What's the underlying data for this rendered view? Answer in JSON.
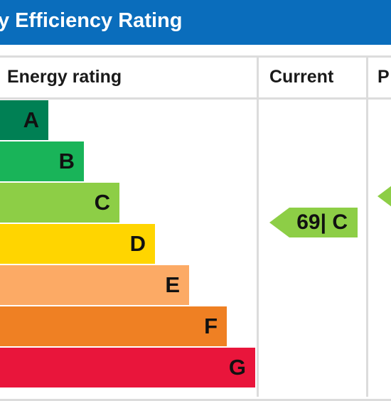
{
  "header": {
    "title": "y Efficiency Rating",
    "bg_color": "#0a6dbc"
  },
  "columns": {
    "rating": "Energy rating",
    "current": "Current",
    "potential": "P"
  },
  "bands": [
    {
      "letter": "A",
      "color": "#008054"
    },
    {
      "letter": "B",
      "color": "#19b459"
    },
    {
      "letter": "C",
      "color": "#8dce46"
    },
    {
      "letter": "D",
      "color": "#ffd500"
    },
    {
      "letter": "E",
      "color": "#fcaa65"
    },
    {
      "letter": "F",
      "color": "#ef8023"
    },
    {
      "letter": "G",
      "color": "#e9153b"
    }
  ],
  "current": {
    "value": "69",
    "separator": "|",
    "band": "C",
    "color": "#8dce46"
  },
  "potential": {
    "color": "#8dce46"
  }
}
